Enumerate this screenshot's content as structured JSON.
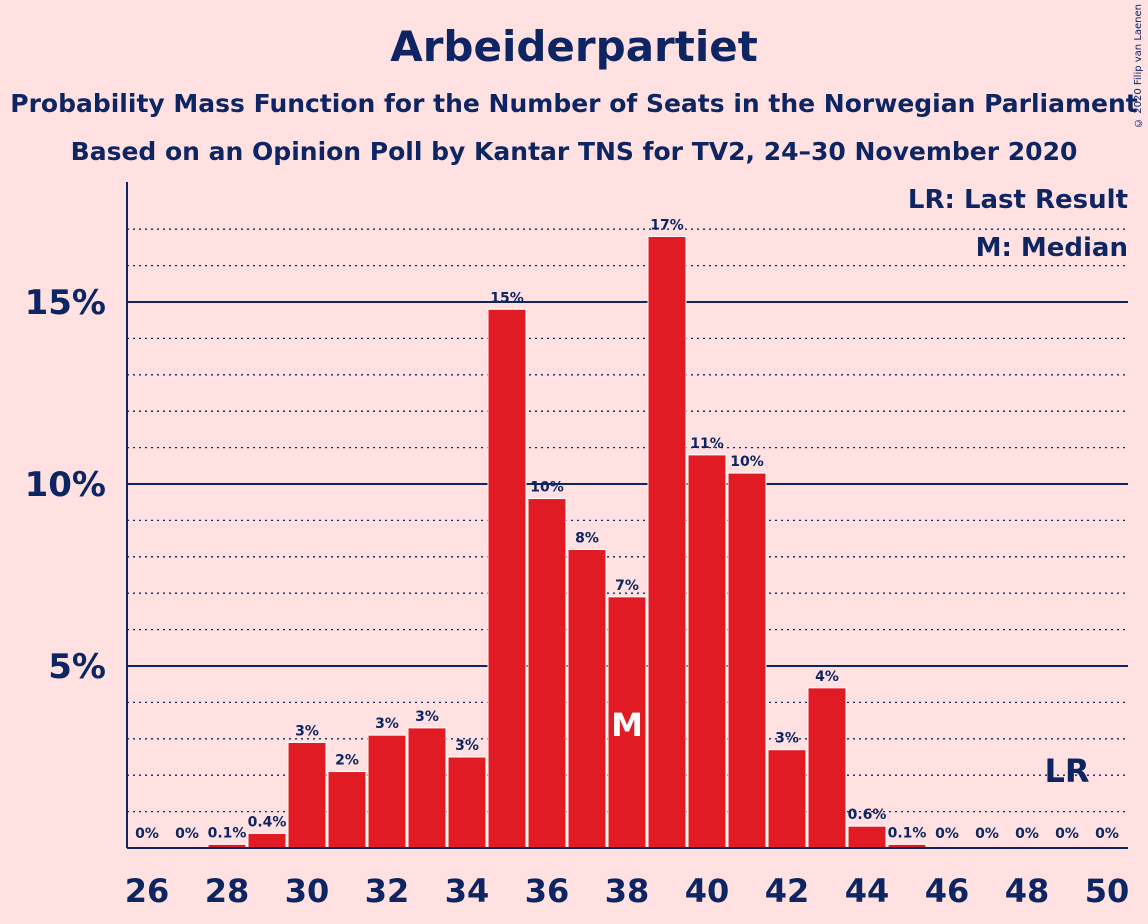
{
  "chart_data": {
    "type": "bar",
    "title": "Arbeiderpartiet",
    "subtitle": "Probability Mass Function for the Number of Seats in the Norwegian Parliament",
    "subtitle2": "Based on an Opinion Poll by Kantar TNS for TV2, 24–30 November 2020",
    "copyright": "© 2020 Filip van Laenen",
    "legend": [
      "LR: Last Result",
      "M: Median"
    ],
    "legend_placement": "top-right",
    "x": [
      26,
      27,
      28,
      29,
      30,
      31,
      32,
      33,
      34,
      35,
      36,
      37,
      38,
      39,
      40,
      41,
      42,
      43,
      44,
      45,
      46,
      47,
      48,
      49,
      50
    ],
    "x_ticks": [
      "26",
      "28",
      "30",
      "32",
      "34",
      "36",
      "38",
      "40",
      "42",
      "44",
      "46",
      "48",
      "50"
    ],
    "values": [
      0,
      0,
      0.1,
      0.4,
      2.9,
      2.1,
      3.1,
      3.3,
      2.5,
      14.8,
      9.6,
      8.2,
      6.9,
      16.8,
      10.8,
      10.3,
      2.7,
      4.4,
      0.6,
      0.1,
      0,
      0,
      0,
      0,
      0
    ],
    "labels": [
      "0%",
      "0%",
      "0.1%",
      "0.4%",
      "3%",
      "2%",
      "3%",
      "3%",
      "3%",
      "15%",
      "10%",
      "8%",
      "7%",
      "17%",
      "11%",
      "10%",
      "3%",
      "4%",
      "0.6%",
      "0.1%",
      "0%",
      "0%",
      "0%",
      "0%",
      "0%"
    ],
    "y_ticks": [
      "5%",
      "10%",
      "15%"
    ],
    "ylim": [
      0,
      18
    ],
    "grid": true,
    "median_seat": 38,
    "median_label": "M",
    "last_result_seat": 49,
    "last_result_label": "LR",
    "colors": {
      "bar": "#e01b24",
      "text": "#0d2562",
      "background": "#ffe1e1"
    }
  }
}
